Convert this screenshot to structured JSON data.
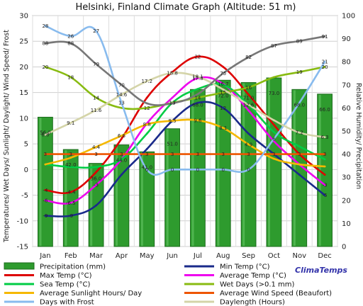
{
  "chart_data": {
    "type": "line",
    "title": "Helsinki, Finland Climate Graph (Altitude: 51 m)",
    "ylabel_left": "Temperatures/ Wet Days/ Sunlight/ Daylight/ Wind Speed/ Frost",
    "ylabel_right": "Relative Humidity/ Precipitation",
    "categories": [
      "Jan",
      "Feb",
      "Mar",
      "Apr",
      "May",
      "Jun",
      "Jul",
      "Aug",
      "Sep",
      "Oct",
      "Nov",
      "Dec"
    ],
    "ylim_left": [
      -15,
      30
    ],
    "ylim_right": [
      0,
      100
    ],
    "yticks_left": [
      "30",
      "25",
      "20",
      "15",
      "10",
      "5",
      "0",
      "-5",
      "-10",
      "-15"
    ],
    "yticks_right": [
      "100",
      "90",
      "80",
      "70",
      "60",
      "50",
      "40",
      "30",
      "20",
      "10",
      "0"
    ],
    "grid": true,
    "bars": {
      "name": "Precipitation (mm)",
      "axis": "right",
      "color": "#2e9b2e",
      "values": [
        56.0,
        42.0,
        36.0,
        44.0,
        41.0,
        51.0,
        68.0,
        72.0,
        71.0,
        73.0,
        68.0,
        66.0
      ],
      "labels": [
        "56.0",
        "42.0",
        "36.0",
        "44.0",
        "41.0",
        "51.0",
        "68.0",
        "72.0",
        "71.0",
        "73.0",
        "68.0",
        "66.0"
      ]
    },
    "series": [
      {
        "name": "Max Temp (°C)",
        "color": "#dd0000",
        "axis": "left",
        "values": [
          -4,
          -4.4,
          -0.5,
          6,
          14,
          19,
          22,
          20,
          14.6,
          8.7,
          3,
          -1
        ],
        "labels": [
          "-4",
          "-4.4",
          "",
          "",
          "",
          "",
          "22",
          "",
          "",
          "",
          "",
          ""
        ]
      },
      {
        "name": "Min Temp (°C)",
        "color": "#1a2a8a",
        "axis": "left",
        "values": [
          -9,
          -9,
          -7,
          -1,
          4,
          9.5,
          13,
          12,
          7,
          3,
          -1,
          -5
        ],
        "labels": [
          "-9",
          "-9",
          "",
          "",
          "",
          "",
          "",
          "12",
          "",
          "",
          "",
          "-5"
        ]
      },
      {
        "name": "Average Temp (°C)",
        "color": "#ee00ee",
        "axis": "left",
        "values": [
          -6,
          -6.5,
          -3,
          2,
          9,
          14,
          17.8,
          16.7,
          11.5,
          5.5,
          1,
          -3
        ],
        "labels": [
          "-6",
          "-6.5",
          "-3",
          "",
          "",
          "",
          "17.8",
          "16.7",
          "",
          "",
          "",
          "-3"
        ]
      },
      {
        "name": "Sea Temp (°C)",
        "color": "#00cc44",
        "axis": "left",
        "values": [
          1,
          0.5,
          0.5,
          2,
          7,
          13,
          15.7,
          16.5,
          12.6,
          7.3,
          4.5,
          2
        ],
        "labels": [
          "",
          "",
          "",
          "",
          "",
          "13",
          "",
          "",
          "12.6",
          "",
          "",
          ""
        ]
      },
      {
        "name": "Wet Days (>0.1 mm)",
        "color": "#88bb11",
        "axis": "left",
        "values": [
          20,
          18,
          14,
          12,
          12,
          13,
          14,
          15,
          16,
          18,
          19,
          20
        ],
        "labels": [
          "20",
          "18",
          "14",
          "",
          "12",
          "13",
          "14",
          "15",
          "16",
          "",
          "19",
          "20"
        ]
      },
      {
        "name": "Average Sunlight Hours/ Day",
        "color": "#f5b800",
        "axis": "left",
        "values": [
          1,
          2.3,
          4.4,
          6.6,
          8.8,
          9.5,
          9.6,
          8.1,
          4.9,
          2.1,
          1,
          0.6
        ],
        "labels": [
          "",
          "",
          "4.4",
          "6.6",
          "8.8",
          "9.5",
          "9.6",
          "8.1",
          "4.9",
          "",
          "",
          ""
        ]
      },
      {
        "name": "Average Wind Speed (Beaufort)",
        "color": "#ee5500",
        "axis": "left",
        "values": [
          3,
          3,
          3,
          3,
          3,
          3,
          3,
          3,
          3,
          3,
          3,
          3
        ],
        "labels": [
          "3",
          "3",
          "3",
          "3",
          "3",
          "3",
          "3",
          "3",
          "3",
          "3",
          "3",
          "3"
        ]
      },
      {
        "name": "Days with Frost",
        "color": "#88bbee",
        "axis": "left",
        "values": [
          28,
          26,
          27,
          13,
          0,
          0,
          0,
          0,
          0,
          6,
          13,
          21
        ],
        "labels": [
          "28",
          "26",
          "27",
          "13",
          "0",
          "0",
          "0",
          "0",
          "0",
          "6",
          "",
          "21"
        ]
      },
      {
        "name": "Daylength (Hours)",
        "color": "#d4d4a8",
        "axis": "left",
        "values": [
          6.8,
          9.1,
          11.6,
          14.6,
          17.2,
          18.8,
          18.1,
          15.6,
          12.6,
          9.6,
          7.2,
          6.3
        ],
        "labels": [
          "6.8",
          "9.1",
          "11.6",
          "14.6",
          "17.2",
          "18.8",
          "18.1",
          "",
          "",
          "",
          "7.2",
          "6.3"
        ]
      },
      {
        "name": "Relative Humidity",
        "color": "#777777",
        "axis": "right",
        "values": [
          88,
          88,
          79,
          70,
          62,
          62,
          66,
          75,
          82,
          87,
          89,
          91
        ],
        "labels": [
          "88",
          "88",
          "79",
          "70",
          "",
          "",
          "",
          "75",
          "82",
          "87",
          "89",
          "91"
        ]
      }
    ],
    "legend": {
      "placement": "bottom",
      "entries": [
        {
          "label": "Precipitation (mm)",
          "color": "#2e9b2e",
          "kind": "bar"
        },
        {
          "label": "Min Temp (°C)",
          "color": "#1a2a8a",
          "kind": "line"
        },
        {
          "label": "Max Temp (°C)",
          "color": "#dd0000",
          "kind": "line"
        },
        {
          "label": "Average Temp (°C)",
          "color": "#ee00ee",
          "kind": "line"
        },
        {
          "label": "Sea Temp (°C)",
          "color": "#00cc44",
          "kind": "line"
        },
        {
          "label": "Wet Days (>0.1 mm)",
          "color": "#88bb11",
          "kind": "line"
        },
        {
          "label": "Average Sunlight Hours/ Day",
          "color": "#f5b800",
          "kind": "line"
        },
        {
          "label": "Average Wind Speed (Beaufort)",
          "color": "#ee5500",
          "kind": "line"
        },
        {
          "label": "Days with Frost",
          "color": "#88bbee",
          "kind": "line"
        },
        {
          "label": "Daylength (Hours)",
          "color": "#d4d4a8",
          "kind": "line"
        }
      ]
    },
    "brand": "ClimaTemps"
  }
}
